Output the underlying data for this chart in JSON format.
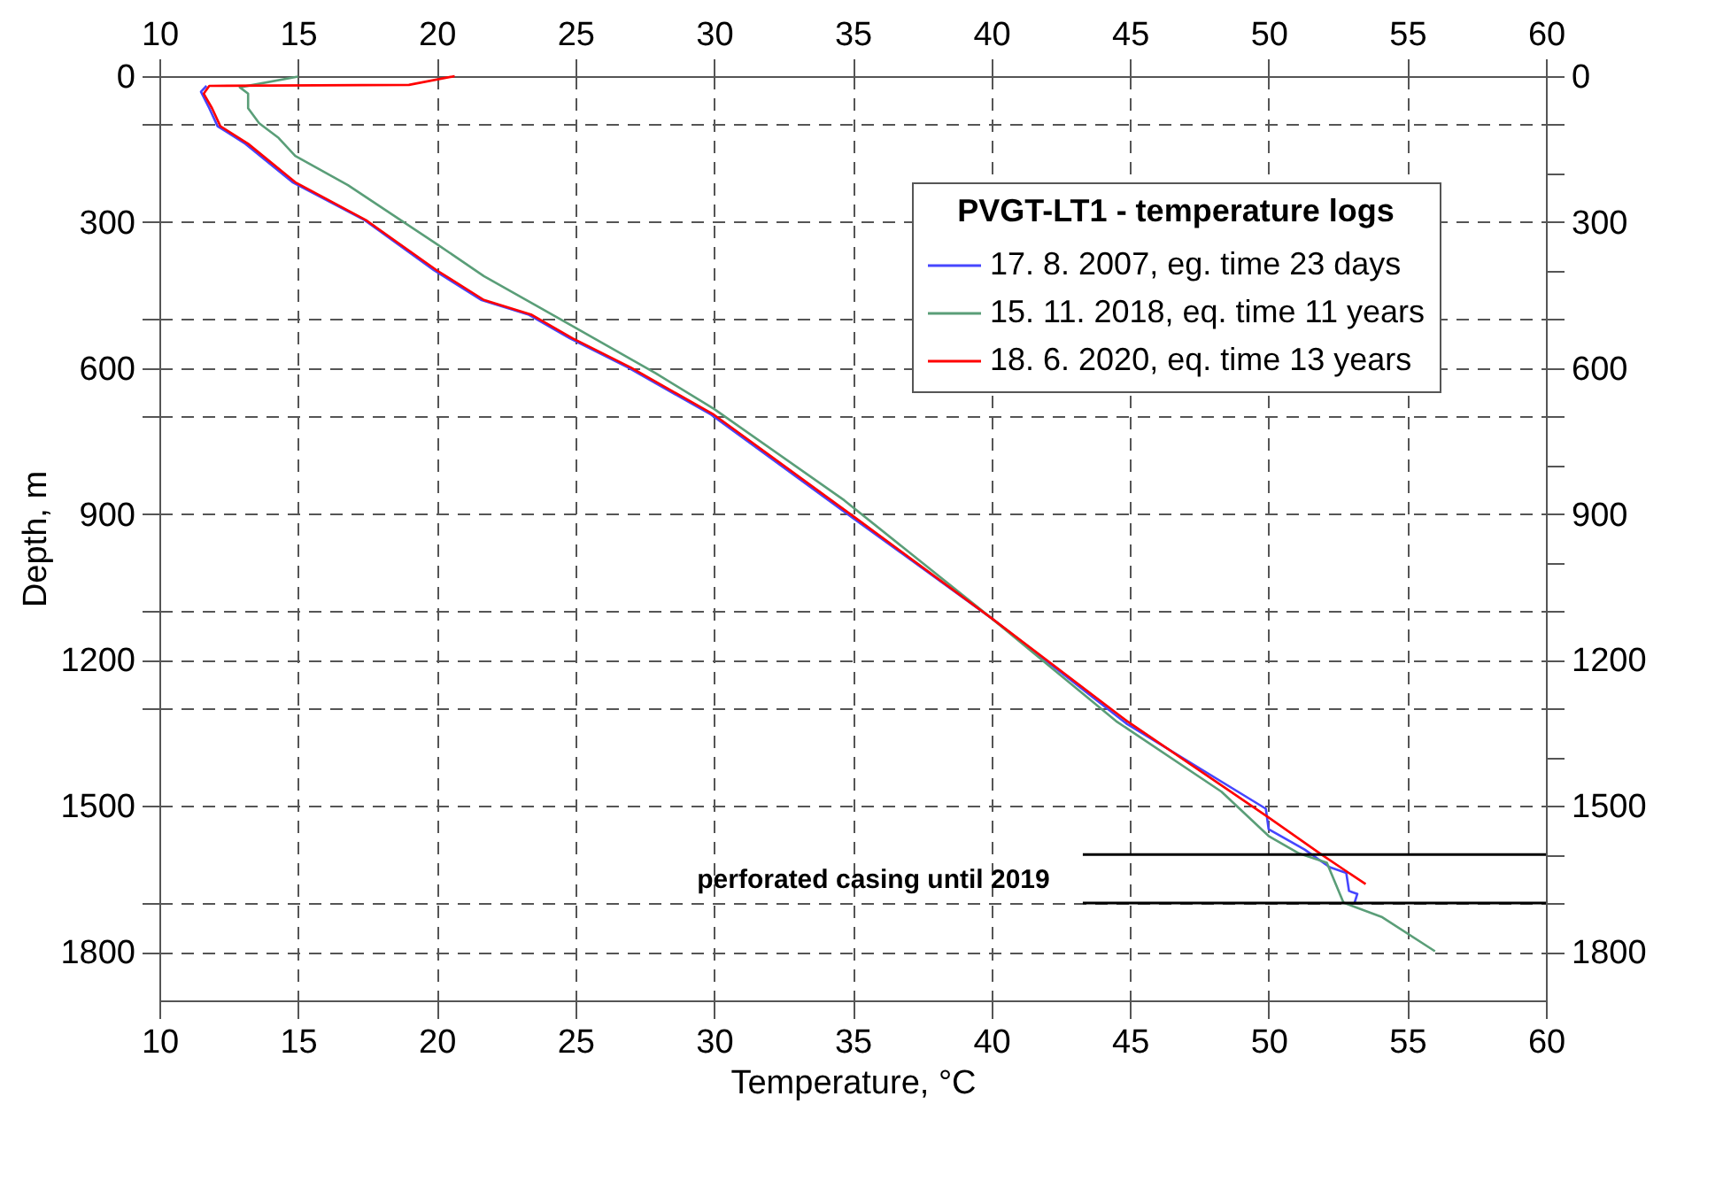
{
  "chart_data": {
    "type": "line",
    "xlabel": "Temperature, °C",
    "ylabel": "Depth, m",
    "legend_title": "PVGT-LT1  -  temperature logs",
    "xlim": [
      10,
      60
    ],
    "xticks": [
      10,
      15,
      20,
      25,
      30,
      35,
      40,
      45,
      50,
      55,
      60
    ],
    "x2lim": [
      10,
      60
    ],
    "x2ticks": [
      10,
      15,
      20,
      25,
      30,
      35,
      40,
      45,
      50,
      55,
      60
    ],
    "ylim": [
      1900,
      0
    ],
    "yticks": [
      0,
      {
        "value": 100,
        "label": null
      },
      300,
      {
        "value": 500,
        "label": null
      },
      600,
      {
        "value": 700,
        "label": null
      },
      900,
      {
        "value": 1100,
        "label": null
      },
      1200,
      {
        "value": 1300,
        "label": null
      },
      1500,
      {
        "value": 1700,
        "label": null
      },
      1800
    ],
    "y2lim": [
      1900,
      0
    ],
    "y2ticks": [
      0,
      {
        "value": 100,
        "label": null
      },
      {
        "value": 200,
        "label": null
      },
      300,
      {
        "value": 400,
        "label": null
      },
      {
        "value": 500,
        "label": null
      },
      600,
      {
        "value": 700,
        "label": null
      },
      {
        "value": 800,
        "label": null
      },
      900,
      {
        "value": 1000,
        "label": null
      },
      {
        "value": 1100,
        "label": null
      },
      1200,
      {
        "value": 1300,
        "label": null
      },
      {
        "value": 1400,
        "label": null
      },
      1500,
      {
        "value": 1600,
        "label": null
      },
      {
        "value": 1700,
        "label": null
      },
      1800
    ],
    "grid": true,
    "legend": "top right",
    "marker": "none",
    "line_style": "solid",
    "series": [
      {
        "name": "17. 8. 2007, eg. time 23 days",
        "color": "#4646ff",
        "x": [
          11.7,
          11.5,
          11.8,
          12.1,
          13.1,
          14.8,
          17.4,
          19.9,
          21.6,
          23.3,
          24.8,
          26.9,
          29.9,
          35.0,
          40.0,
          44.9,
          49.9,
          50.0,
          51.3,
          52.2,
          52.8,
          52.9,
          53.2,
          53.1
        ],
        "values": [
          20,
          32,
          66,
          103,
          139,
          218,
          296,
          399,
          460,
          490,
          539,
          599,
          696,
          908,
          1114,
          1332,
          1506,
          1548,
          1590,
          1626,
          1638,
          1675,
          1681,
          1699
        ]
      },
      {
        "name": "15. 11. 2018, eq. time 11 years",
        "color": "#5a9e78",
        "x": [
          15.0,
          12.9,
          13.2,
          13.2,
          13.6,
          14.3,
          14.9,
          16.8,
          18.7,
          20.0,
          21.7,
          23.6,
          24.9,
          27.9,
          30.0,
          34.7,
          40.0,
          44.5,
          48.3,
          50.0,
          51.1,
          52.1,
          52.7,
          54.1,
          56.0
        ],
        "values": [
          1,
          23,
          36,
          66,
          97,
          127,
          164,
          224,
          296,
          345,
          411,
          472,
          514,
          611,
          684,
          872,
          1114,
          1326,
          1471,
          1562,
          1598,
          1617,
          1699,
          1729,
          1799
        ]
      },
      {
        "name": "18. 6. 2020, eq. time 13 years",
        "color": "#ff0000",
        "x": [
          20.65,
          19.0,
          11.8,
          11.6,
          11.9,
          12.2,
          13.2,
          14.9,
          17.45,
          20.0,
          21.7,
          23.4,
          24.9,
          27.0,
          30.0,
          35.1,
          40.0,
          44.9,
          50.0,
          51.9,
          53.5
        ],
        "values": [
          0,
          18,
          20,
          36,
          66,
          103,
          139,
          218,
          296,
          399,
          460,
          490,
          539,
          599,
          696,
          908,
          1114,
          1326,
          1524,
          1600,
          1661
        ]
      }
    ],
    "ref_lines": [
      {
        "axis": "y",
        "value": 1600,
        "color": "#000000"
      },
      {
        "axis": "y",
        "value": 1700,
        "color": "#000000"
      }
    ],
    "annotations": [
      "perforated casing until 2019"
    ]
  }
}
